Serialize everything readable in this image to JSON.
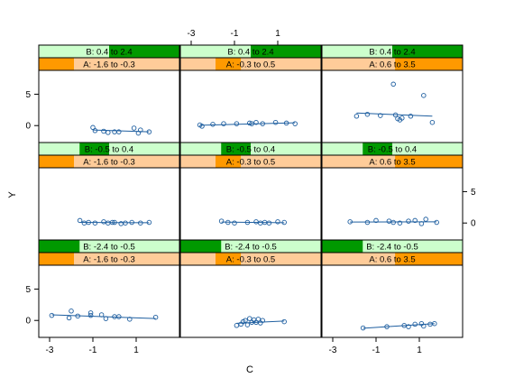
{
  "chart_data": {
    "type": "scatter",
    "title": "",
    "xlabel": "C",
    "ylabel": "Y",
    "xlim": [
      -3.5,
      3.0
    ],
    "ylim": [
      -2.7,
      8.8
    ],
    "xticks": [
      -3,
      -1,
      1
    ],
    "yticks": [
      0,
      5
    ],
    "colors": {
      "point": "#1f5fa0",
      "line": "#1f5fa0",
      "strip_b_bg": "#ccffcc",
      "strip_b_fill": "#009900",
      "strip_a_bg": "#ffcc99",
      "strip_a_fill": "#ff9900",
      "border": "#000000"
    },
    "panels": [
      {
        "row": 0,
        "col": 0,
        "strip_b": {
          "label": "B: 0.4 to 2.4",
          "range": [
            0.5,
            1.0
          ]
        },
        "strip_a": {
          "label": "A: -1.6 to -0.3",
          "range": [
            0.0,
            0.25
          ]
        },
        "points": [
          [
            -1.0,
            -0.3
          ],
          [
            -0.9,
            -0.8
          ],
          [
            -0.5,
            -0.9
          ],
          [
            -0.3,
            -1.1
          ],
          [
            0.0,
            -1.0
          ],
          [
            0.2,
            -1.0
          ],
          [
            0.9,
            -0.4
          ],
          [
            1.1,
            -1.2
          ],
          [
            1.2,
            -0.7
          ],
          [
            1.6,
            -1.0
          ]
        ],
        "fit": [
          [
            -1.0,
            -0.7
          ],
          [
            1.6,
            -1.0
          ]
        ]
      },
      {
        "row": 0,
        "col": 1,
        "strip_b": {
          "label": "B: 0.4 to 2.4",
          "range": [
            0.5,
            1.0
          ]
        },
        "strip_a": {
          "label": "A: -0.3 to 0.5",
          "range": [
            0.25,
            0.43
          ]
        },
        "points": [
          [
            -2.6,
            0.1
          ],
          [
            -2.5,
            -0.1
          ],
          [
            -2.0,
            0.2
          ],
          [
            -1.5,
            0.3
          ],
          [
            -0.9,
            0.3
          ],
          [
            -0.3,
            0.4
          ],
          [
            -0.2,
            0.3
          ],
          [
            0.0,
            0.5
          ],
          [
            0.3,
            0.3
          ],
          [
            0.9,
            0.5
          ],
          [
            1.4,
            0.4
          ],
          [
            1.8,
            0.3
          ]
        ],
        "fit": [
          [
            -2.6,
            0.05
          ],
          [
            1.8,
            0.45
          ]
        ]
      },
      {
        "row": 0,
        "col": 2,
        "strip_b": {
          "label": "B: 0.4 to 2.4",
          "range": [
            0.5,
            1.0
          ]
        },
        "strip_a": {
          "label": "A: 0.6 to 3.5",
          "range": [
            0.52,
            1.0
          ]
        },
        "points": [
          [
            -1.9,
            1.5
          ],
          [
            -1.4,
            1.8
          ],
          [
            -0.8,
            1.6
          ],
          [
            -0.2,
            6.6
          ],
          [
            -0.1,
            1.7
          ],
          [
            0.0,
            1.1
          ],
          [
            0.1,
            0.9
          ],
          [
            0.2,
            1.2
          ],
          [
            0.6,
            1.5
          ],
          [
            1.2,
            4.8
          ],
          [
            1.6,
            0.5
          ]
        ],
        "fit": [
          [
            -1.9,
            2.0
          ],
          [
            1.6,
            1.5
          ]
        ]
      },
      {
        "row": 1,
        "col": 0,
        "strip_b": {
          "label": "B: -0.5 to 0.4",
          "range": [
            0.29,
            0.5
          ]
        },
        "strip_a": {
          "label": "A: -1.6 to -0.3",
          "range": [
            0.0,
            0.25
          ]
        },
        "points": [
          [
            -1.6,
            0.4
          ],
          [
            -1.4,
            0.0
          ],
          [
            -1.2,
            0.1
          ],
          [
            -0.9,
            0.0
          ],
          [
            -0.5,
            0.2
          ],
          [
            -0.3,
            0.0
          ],
          [
            -0.1,
            0.1
          ],
          [
            0.0,
            0.1
          ],
          [
            0.3,
            -0.1
          ],
          [
            0.5,
            0.0
          ],
          [
            0.8,
            0.1
          ],
          [
            1.2,
            0.0
          ],
          [
            1.6,
            0.1
          ]
        ],
        "fit": [
          [
            -1.6,
            0.1
          ],
          [
            1.6,
            0.05
          ]
        ]
      },
      {
        "row": 1,
        "col": 1,
        "strip_b": {
          "label": "B: -0.5 to 0.4",
          "range": [
            0.29,
            0.5
          ]
        },
        "strip_a": {
          "label": "A: -0.3 to 0.5",
          "range": [
            0.25,
            0.43
          ]
        },
        "points": [
          [
            -1.6,
            0.3
          ],
          [
            -1.3,
            0.1
          ],
          [
            -1.0,
            0.0
          ],
          [
            -0.4,
            0.1
          ],
          [
            0.0,
            0.2
          ],
          [
            0.2,
            0.0
          ],
          [
            0.4,
            0.1
          ],
          [
            0.6,
            0.0
          ],
          [
            1.0,
            0.2
          ],
          [
            1.3,
            0.1
          ]
        ],
        "fit": [
          [
            -1.6,
            0.15
          ],
          [
            1.3,
            0.05
          ]
        ]
      },
      {
        "row": 1,
        "col": 2,
        "strip_b": {
          "label": "B: -0.5 to 0.4",
          "range": [
            0.29,
            0.5
          ]
        },
        "strip_a": {
          "label": "A: 0.6 to 3.5",
          "range": [
            0.52,
            1.0
          ]
        },
        "points": [
          [
            -2.2,
            0.2
          ],
          [
            -1.4,
            0.1
          ],
          [
            -1.0,
            0.4
          ],
          [
            -0.4,
            0.3
          ],
          [
            -0.2,
            0.1
          ],
          [
            0.1,
            0.0
          ],
          [
            0.5,
            0.3
          ],
          [
            0.8,
            0.4
          ],
          [
            1.1,
            -0.1
          ],
          [
            1.3,
            0.6
          ],
          [
            1.8,
            0.1
          ]
        ],
        "fit": [
          [
            -2.2,
            0.15
          ],
          [
            1.8,
            0.2
          ]
        ]
      },
      {
        "row": 2,
        "col": 0,
        "strip_b": {
          "label": "B: -2.4 to -0.5",
          "range": [
            0.0,
            0.29
          ]
        },
        "strip_a": {
          "label": "A: -1.6 to -0.3",
          "range": [
            0.0,
            0.25
          ]
        },
        "points": [
          [
            -2.9,
            0.8
          ],
          [
            -2.1,
            0.4
          ],
          [
            -2.0,
            1.5
          ],
          [
            -1.7,
            0.7
          ],
          [
            -1.1,
            0.8
          ],
          [
            -1.1,
            1.2
          ],
          [
            -0.6,
            0.9
          ],
          [
            -0.4,
            0.3
          ],
          [
            0.0,
            0.6
          ],
          [
            0.2,
            0.6
          ],
          [
            0.7,
            0.2
          ],
          [
            1.9,
            0.5
          ]
        ],
        "fit": [
          [
            -2.9,
            0.9
          ],
          [
            1.9,
            0.3
          ]
        ]
      },
      {
        "row": 2,
        "col": 1,
        "strip_b": {
          "label": "B: -2.4 to -0.5",
          "range": [
            0.0,
            0.29
          ]
        },
        "strip_a": {
          "label": "A: -0.3 to 0.5",
          "range": [
            0.25,
            0.43
          ]
        },
        "points": [
          [
            -0.9,
            -0.8
          ],
          [
            -0.7,
            -0.6
          ],
          [
            -0.6,
            -0.2
          ],
          [
            -0.5,
            0.0
          ],
          [
            -0.4,
            -0.7
          ],
          [
            -0.3,
            0.3
          ],
          [
            -0.2,
            -0.3
          ],
          [
            -0.1,
            0.1
          ],
          [
            0.0,
            -0.3
          ],
          [
            0.1,
            0.2
          ],
          [
            0.2,
            -0.4
          ],
          [
            0.3,
            0.0
          ],
          [
            1.3,
            -0.2
          ]
        ],
        "fit": [
          [
            -0.9,
            -0.45
          ],
          [
            1.3,
            -0.1
          ]
        ]
      },
      {
        "row": 2,
        "col": 2,
        "strip_b": {
          "label": "B: -2.4 to -0.5",
          "range": [
            0.0,
            0.29
          ]
        },
        "strip_a": {
          "label": "A: 0.6 to 3.5",
          "range": [
            0.52,
            1.0
          ]
        },
        "points": [
          [
            -1.6,
            -1.2
          ],
          [
            -0.5,
            -1.0
          ],
          [
            0.3,
            -0.8
          ],
          [
            0.5,
            -1.0
          ],
          [
            0.8,
            -0.6
          ],
          [
            1.1,
            -0.5
          ],
          [
            1.2,
            -0.9
          ],
          [
            1.5,
            -0.6
          ],
          [
            1.7,
            -0.5
          ]
        ],
        "fit": [
          [
            -1.6,
            -1.25
          ],
          [
            1.7,
            -0.5
          ]
        ]
      }
    ]
  }
}
